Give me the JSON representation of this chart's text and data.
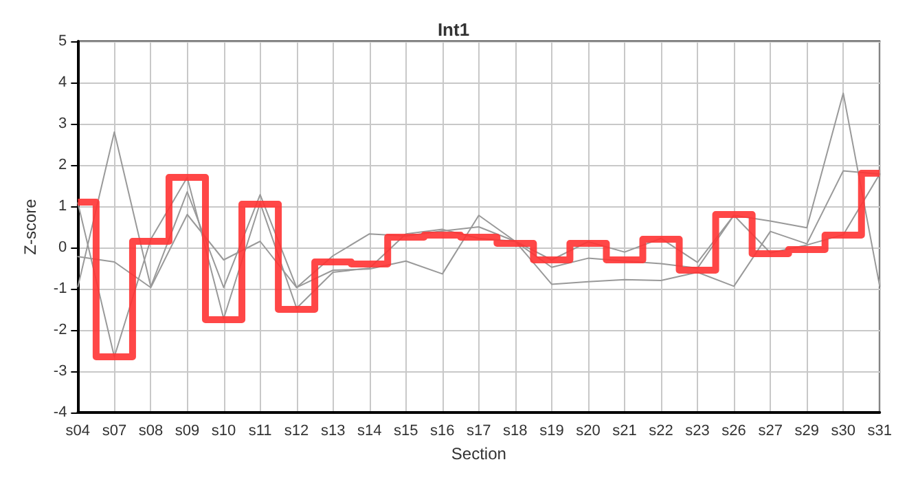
{
  "chart_data": {
    "type": "line",
    "title": "Int1",
    "xlabel": "Section",
    "ylabel": "Z-score",
    "categories": [
      "s04",
      "s07",
      "s08",
      "s09",
      "s10",
      "s11",
      "s12",
      "s13",
      "s14",
      "s15",
      "s16",
      "s17",
      "s18",
      "s19",
      "s20",
      "s21",
      "s22",
      "s23",
      "s26",
      "s27",
      "s29",
      "s30",
      "s31"
    ],
    "series": [
      {
        "color": "#999999",
        "values": [
          -0.95,
          2.8,
          -0.95,
          1.35,
          -0.97,
          1.28,
          -0.97,
          -0.2,
          0.33,
          0.28,
          0.4,
          0.5,
          0.15,
          -0.3,
          0.14,
          -0.11,
          0.22,
          -0.36,
          0.78,
          0.64,
          0.48,
          3.74,
          -0.94
        ]
      },
      {
        "color": "#999999",
        "values": [
          1.08,
          -2.65,
          0.2,
          1.7,
          -1.72,
          1.08,
          -1.47,
          -0.6,
          -0.5,
          0.33,
          0.44,
          0.22,
          0.15,
          -0.48,
          -0.26,
          -0.33,
          -0.39,
          -0.5,
          0.78,
          -0.13,
          0.06,
          0.31,
          1.78
        ]
      },
      {
        "color": "#999999",
        "values": [
          -0.22,
          -0.35,
          -0.97,
          0.8,
          -0.3,
          0.15,
          -0.97,
          -0.55,
          -0.52,
          -0.33,
          -0.64,
          0.78,
          0.15,
          -0.89,
          -0.83,
          -0.78,
          -0.8,
          -0.6,
          -0.94,
          0.39,
          0.09,
          1.86,
          1.78
        ]
      },
      {
        "type": "step",
        "color": "#ff3333",
        "values": [
          1.1,
          -2.65,
          0.15,
          1.7,
          -1.75,
          1.05,
          -1.5,
          -0.35,
          -0.4,
          0.25,
          0.3,
          0.25,
          0.1,
          -0.3,
          0.1,
          -0.3,
          0.2,
          -0.55,
          0.8,
          -0.15,
          -0.05,
          0.3,
          1.8
        ]
      }
    ],
    "ylim": [
      -4,
      5
    ],
    "yticks": [
      -4,
      -3,
      -2,
      -1,
      0,
      1,
      2,
      3,
      4,
      5
    ],
    "grid": true,
    "marker": "none",
    "line_style": "solid"
  }
}
